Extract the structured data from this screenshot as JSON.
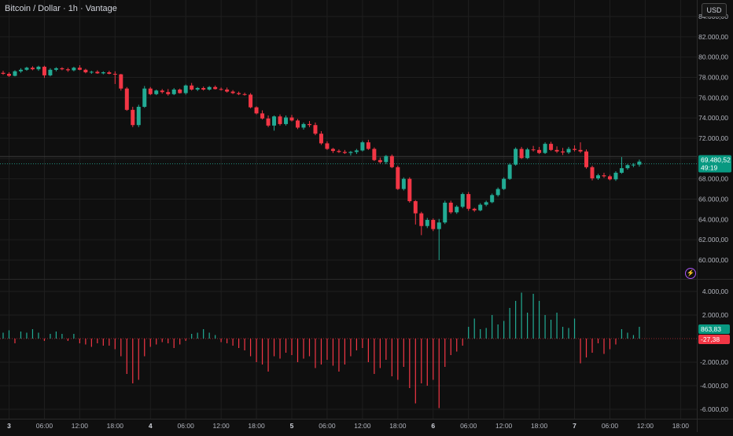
{
  "header": {
    "title": "Bitcoin / Dollar · 1h · Vantage",
    "currency": "USD"
  },
  "colors": {
    "background": "#0f0f0f",
    "up": "#22ab94",
    "down": "#f23645",
    "grid": "#1f1f1f",
    "axis_text": "#b2b5be",
    "price_label": "#089981",
    "lightning": "#a855f7"
  },
  "price_pane": {
    "last_price_label": "69.480,52",
    "countdown_label": "49:19"
  },
  "indicator_pane": {
    "positive_label": "863,83",
    "negative_label": "-27,38"
  },
  "chart_data": [
    {
      "type": "candlestick",
      "title": "Bitcoin / Dollar · 1h · Vantage",
      "y_ticks": [
        {
          "value": 84000,
          "label": "84.000,00"
        },
        {
          "value": 82000,
          "label": "82.000,00"
        },
        {
          "value": 80000,
          "label": "80.000,00"
        },
        {
          "value": 78000,
          "label": "78.000,00"
        },
        {
          "value": 76000,
          "label": "76.000,00"
        },
        {
          "value": 74000,
          "label": "74.000,00"
        },
        {
          "value": 72000,
          "label": "72.000,00"
        },
        {
          "value": 70000,
          "label": "70.000,00"
        },
        {
          "value": 68000,
          "label": "68.000,00"
        },
        {
          "value": 66000,
          "label": "66.000,00"
        },
        {
          "value": 64000,
          "label": "64.000,00"
        },
        {
          "value": 62000,
          "label": "62.000,00"
        },
        {
          "value": 60000,
          "label": "60.000,00"
        }
      ],
      "ylim": [
        59000,
        85200
      ],
      "last_price": 69480.52,
      "candles": [
        [
          78450,
          78650,
          78250,
          78350
        ],
        [
          78350,
          78500,
          78050,
          78150
        ],
        [
          78150,
          78700,
          78100,
          78600
        ],
        [
          78600,
          78900,
          78450,
          78750
        ],
        [
          78750,
          79050,
          78650,
          78950
        ],
        [
          78950,
          79100,
          78700,
          78800
        ],
        [
          78800,
          79150,
          78650,
          79050
        ],
        [
          79050,
          79150,
          77950,
          78200
        ],
        [
          78200,
          78900,
          78100,
          78750
        ],
        [
          78750,
          79000,
          78600,
          78900
        ],
        [
          78900,
          79000,
          78700,
          78800
        ],
        [
          78800,
          78950,
          78550,
          78700
        ],
        [
          78700,
          79050,
          78600,
          78950
        ],
        [
          78950,
          79200,
          78700,
          78750
        ],
        [
          78750,
          78850,
          78400,
          78500
        ],
        [
          78500,
          78650,
          78350,
          78550
        ],
        [
          78550,
          78700,
          78350,
          78400
        ],
        [
          78400,
          78600,
          78300,
          78500
        ],
        [
          78500,
          78650,
          78300,
          78350
        ],
        [
          78350,
          78600,
          77350,
          78300
        ],
        [
          78300,
          78350,
          76700,
          76900
        ],
        [
          76900,
          77050,
          74700,
          74800
        ],
        [
          74800,
          75100,
          73100,
          73300
        ],
        [
          73300,
          75300,
          73100,
          75100
        ],
        [
          75100,
          77150,
          75000,
          76900
        ],
        [
          76900,
          77050,
          76250,
          76350
        ],
        [
          76350,
          76800,
          76250,
          76700
        ],
        [
          76700,
          76850,
          76400,
          76550
        ],
        [
          76550,
          76850,
          76200,
          76350
        ],
        [
          76350,
          76950,
          76250,
          76800
        ],
        [
          76800,
          76900,
          76400,
          76450
        ],
        [
          76450,
          77300,
          76300,
          77200
        ],
        [
          77200,
          77450,
          76700,
          76800
        ],
        [
          76800,
          77050,
          76650,
          76950
        ],
        [
          76950,
          77100,
          76700,
          76800
        ],
        [
          76800,
          77150,
          76700,
          77050
        ],
        [
          77050,
          77200,
          76800,
          76850
        ],
        [
          76850,
          77000,
          76700,
          76800
        ],
        [
          76800,
          77000,
          76500,
          76600
        ],
        [
          76600,
          76750,
          76350,
          76450
        ],
        [
          76450,
          76600,
          76250,
          76350
        ],
        [
          76350,
          76500,
          76200,
          76300
        ],
        [
          76300,
          76450,
          74950,
          75050
        ],
        [
          75050,
          75150,
          74350,
          74450
        ],
        [
          74450,
          74750,
          73850,
          73950
        ],
        [
          73950,
          74250,
          73100,
          73250
        ],
        [
          73250,
          74250,
          72750,
          74150
        ],
        [
          74150,
          74350,
          73250,
          73400
        ],
        [
          73400,
          74250,
          73250,
          74050
        ],
        [
          74050,
          74300,
          73650,
          73750
        ],
        [
          73750,
          73900,
          72900,
          73050
        ],
        [
          73050,
          73550,
          72850,
          73400
        ],
        [
          73400,
          73700,
          73100,
          73300
        ],
        [
          73300,
          73550,
          72300,
          72450
        ],
        [
          72450,
          72700,
          71350,
          71500
        ],
        [
          71500,
          71700,
          70850,
          70950
        ],
        [
          70950,
          71050,
          70550,
          70750
        ],
        [
          70750,
          70900,
          70550,
          70650
        ],
        [
          70650,
          70850,
          70450,
          70550
        ],
        [
          70550,
          70750,
          70300,
          70650
        ],
        [
          70650,
          70950,
          70450,
          70800
        ],
        [
          70800,
          71750,
          70700,
          71600
        ],
        [
          71600,
          71850,
          70850,
          70950
        ],
        [
          70950,
          71100,
          69750,
          69850
        ],
        [
          69850,
          70100,
          69500,
          69650
        ],
        [
          69650,
          70350,
          69450,
          70250
        ],
        [
          70250,
          70400,
          69050,
          69150
        ],
        [
          69150,
          69300,
          66900,
          67000
        ],
        [
          67000,
          68150,
          66850,
          68000
        ],
        [
          68000,
          68150,
          65650,
          65800
        ],
        [
          65800,
          65900,
          63500,
          64600
        ],
        [
          64600,
          64750,
          62450,
          63350
        ],
        [
          63350,
          64150,
          63150,
          63950
        ],
        [
          63950,
          64100,
          62850,
          63050
        ],
        [
          63050,
          64050,
          60000,
          63700
        ],
        [
          63700,
          65850,
          63550,
          65650
        ],
        [
          65650,
          65850,
          64550,
          64700
        ],
        [
          64700,
          65400,
          64550,
          65250
        ],
        [
          65250,
          66650,
          65100,
          66500
        ],
        [
          66500,
          66700,
          64850,
          65050
        ],
        [
          65050,
          65150,
          64750,
          64900
        ],
        [
          64900,
          65600,
          64800,
          65450
        ],
        [
          65450,
          65850,
          65300,
          65700
        ],
        [
          65700,
          66550,
          65600,
          66400
        ],
        [
          66400,
          67150,
          66250,
          67000
        ],
        [
          67000,
          68150,
          66900,
          68000
        ],
        [
          68000,
          69550,
          67900,
          69400
        ],
        [
          69400,
          71100,
          69300,
          70950
        ],
        [
          70950,
          71150,
          69950,
          70050
        ],
        [
          70050,
          71050,
          69950,
          70900
        ],
        [
          70900,
          71250,
          70700,
          70850
        ],
        [
          70850,
          71150,
          70450,
          70550
        ],
        [
          70550,
          71600,
          70450,
          71450
        ],
        [
          71450,
          71650,
          70750,
          70850
        ],
        [
          70850,
          71200,
          70550,
          70700
        ],
        [
          70700,
          71050,
          70350,
          70600
        ],
        [
          70600,
          71150,
          70450,
          70950
        ],
        [
          70950,
          71300,
          70700,
          70850
        ],
        [
          70850,
          71600,
          70550,
          70700
        ],
        [
          70700,
          70900,
          69000,
          69150
        ],
        [
          69150,
          69300,
          67850,
          68050
        ],
        [
          68050,
          68500,
          67900,
          68350
        ],
        [
          68350,
          68600,
          68100,
          68250
        ],
        [
          68250,
          68400,
          67850,
          67950
        ],
        [
          67950,
          68750,
          67800,
          68600
        ],
        [
          68600,
          70150,
          68500,
          69050
        ],
        [
          69050,
          69450,
          68900,
          69350
        ],
        [
          69350,
          69550,
          69150,
          69400
        ],
        [
          69400,
          69900,
          69200,
          69700
        ]
      ]
    },
    {
      "type": "bar",
      "title": "",
      "y_ticks": [
        {
          "value": 4000,
          "label": "4.000,00"
        },
        {
          "value": 2000,
          "label": "2.000,00"
        },
        {
          "value": -2000,
          "label": "-2.000,00"
        },
        {
          "value": -4000,
          "label": "-4.000,00"
        },
        {
          "value": -6000,
          "label": "-6.000,00"
        }
      ],
      "ylim": [
        -6400,
        5200
      ],
      "values": [
        500,
        700,
        -400,
        600,
        500,
        800,
        500,
        -200,
        400,
        600,
        400,
        -200,
        400,
        -400,
        -500,
        -700,
        -400,
        -600,
        -600,
        -900,
        -1500,
        -3000,
        -3800,
        -3500,
        -1500,
        -700,
        -500,
        -300,
        -400,
        -800,
        -500,
        -200,
        400,
        500,
        800,
        500,
        300,
        -300,
        -400,
        -600,
        -800,
        -1000,
        -1500,
        -2000,
        -2200,
        -2800,
        -1500,
        -1700,
        -1200,
        -1400,
        -2000,
        -1700,
        -1500,
        -2500,
        -2200,
        -1800,
        -2300,
        -2800,
        -2200,
        -1500,
        -1000,
        -800,
        -2000,
        -3000,
        -2500,
        -1800,
        -3200,
        -3500,
        -2400,
        -4200,
        -5500,
        -3800,
        -4000,
        -3500,
        -5900,
        -2400,
        -1400,
        -1100,
        -600,
        1000,
        1700,
        800,
        900,
        2000,
        1200,
        1500,
        2600,
        3200,
        3900,
        2200,
        3800,
        3200,
        2000,
        1600,
        2200,
        1000,
        900,
        1700,
        -2100,
        -1600,
        -1200,
        -400,
        -1300,
        -900,
        -500,
        800,
        500,
        300,
        1000
      ]
    }
  ],
  "x_ticks": [
    {
      "label": "3",
      "bold": true,
      "index": 1
    },
    {
      "label": "06:00",
      "bold": false,
      "index": 7
    },
    {
      "label": "12:00",
      "bold": false,
      "index": 13
    },
    {
      "label": "18:00",
      "bold": false,
      "index": 19
    },
    {
      "label": "4",
      "bold": true,
      "index": 25
    },
    {
      "label": "06:00",
      "bold": false,
      "index": 31
    },
    {
      "label": "12:00",
      "bold": false,
      "index": 37
    },
    {
      "label": "18:00",
      "bold": false,
      "index": 43
    },
    {
      "label": "5",
      "bold": true,
      "index": 49
    },
    {
      "label": "06:00",
      "bold": false,
      "index": 55
    },
    {
      "label": "12:00",
      "bold": false,
      "index": 61
    },
    {
      "label": "18:00",
      "bold": false,
      "index": 67
    },
    {
      "label": "6",
      "bold": true,
      "index": 73
    },
    {
      "label": "06:00",
      "bold": false,
      "index": 79
    },
    {
      "label": "12:00",
      "bold": false,
      "index": 85
    },
    {
      "label": "18:00",
      "bold": false,
      "index": 91
    },
    {
      "label": "7",
      "bold": true,
      "index": 97
    },
    {
      "label": "06:00",
      "bold": false,
      "index": 103
    },
    {
      "label": "12:00",
      "bold": false,
      "index": 109
    },
    {
      "label": "18:00",
      "bold": false,
      "index": 115
    }
  ]
}
